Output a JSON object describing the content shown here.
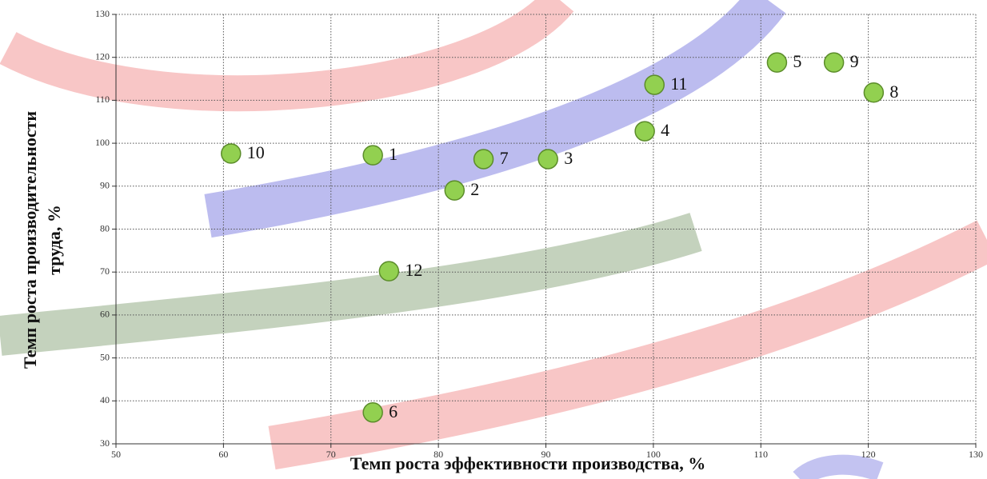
{
  "chart_data": {
    "type": "scatter",
    "xlabel": "Темп роста эффективности производства, %",
    "ylabel": [
      "Темп роста производительности",
      "труда, %"
    ],
    "series": [
      {
        "color": "#92d050",
        "x": [
          60.7,
          73.9,
          84.2,
          90.2,
          81.5,
          99.2,
          100.1,
          111.5,
          116.8,
          120.5,
          75.4,
          73.9
        ],
        "values": [
          97.6,
          97.2,
          96.3,
          96.3,
          89.0,
          102.8,
          113.6,
          118.8,
          118.8,
          111.8,
          70.2,
          37.3
        ],
        "point_labels": [
          "10",
          "1",
          "7",
          "3",
          "2",
          "4",
          "11",
          "5",
          "9",
          "8",
          "12",
          "6"
        ]
      }
    ],
    "xlim": [
      50,
      130
    ],
    "xticks": [
      50,
      60,
      70,
      80,
      90,
      100,
      110,
      120,
      130
    ],
    "ylim": [
      30,
      130
    ],
    "yticks": [
      30,
      40,
      50,
      60,
      70,
      80,
      90,
      100,
      110,
      120,
      130
    ],
    "grid": true
  }
}
